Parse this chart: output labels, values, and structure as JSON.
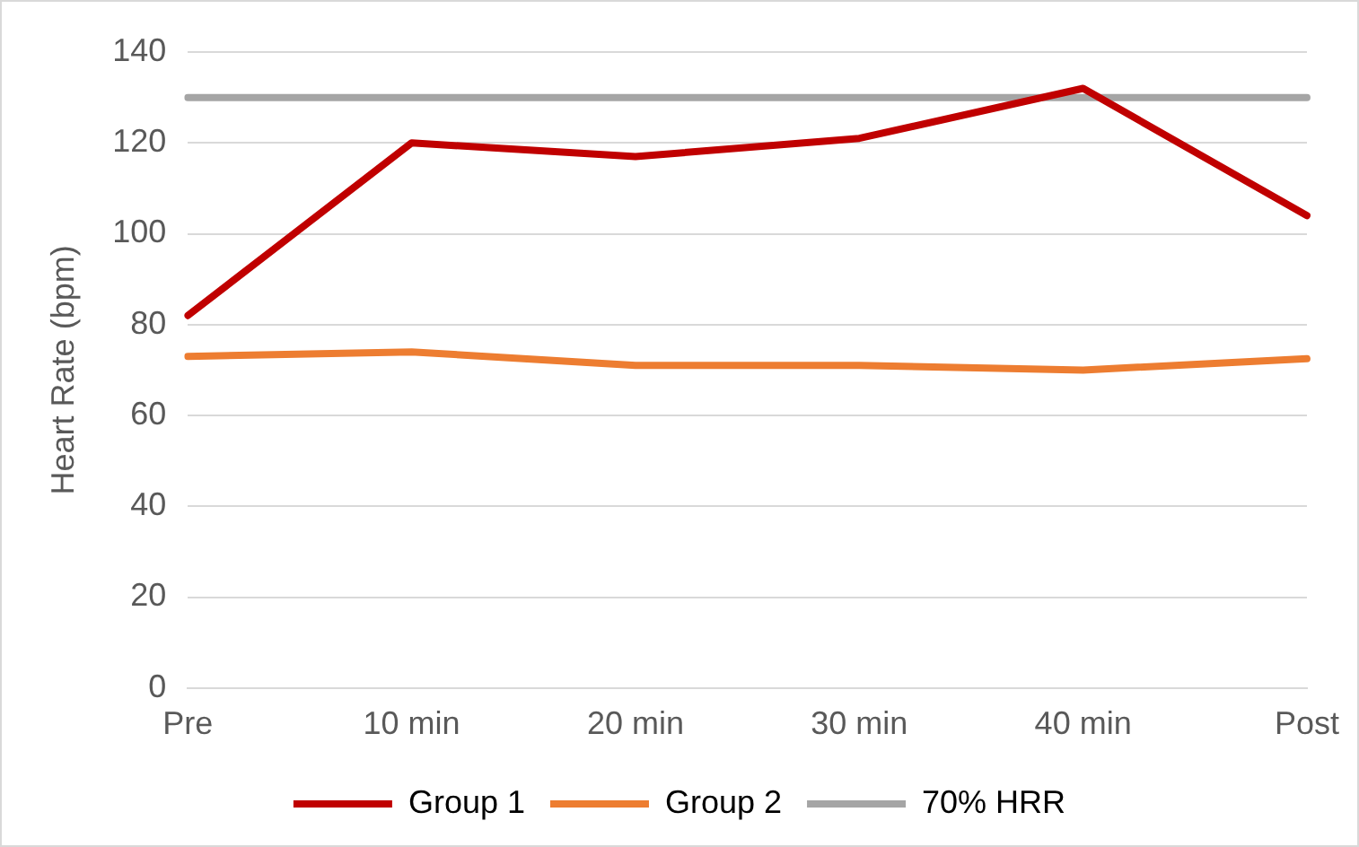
{
  "chart_data": {
    "type": "line",
    "ylabel": "Heart Rate (bpm)",
    "categories": [
      "Pre",
      "10 min",
      "20 min",
      "30 min",
      "40 min",
      "Post"
    ],
    "series": [
      {
        "name": "Group 1",
        "color": "#c00000",
        "values": [
          82,
          120,
          117,
          121,
          132,
          104
        ]
      },
      {
        "name": "Group 2",
        "color": "#ed7d31",
        "values": [
          73,
          74,
          71,
          71,
          70,
          72.5
        ]
      },
      {
        "name": "70% HRR",
        "color": "#a5a5a5",
        "values": [
          130,
          130,
          130,
          130,
          130,
          130
        ]
      }
    ],
    "ylim": [
      0,
      140
    ],
    "yticks": [
      0,
      20,
      40,
      60,
      80,
      100,
      120,
      140
    ],
    "grid": "y",
    "legend": "bottom",
    "marker": "none",
    "line_style": "solid"
  }
}
